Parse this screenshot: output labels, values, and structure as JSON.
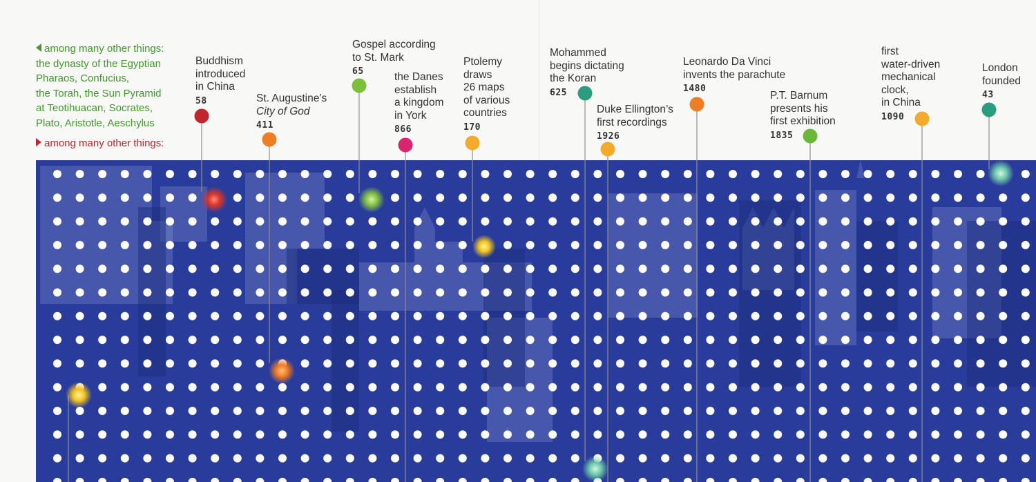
{
  "legend": {
    "green_text": [
      "among many other things:",
      "the dynasty of the Egyptian",
      "Pharaos, Confucius,",
      "the Torah, the Sun Pyramid",
      "at Teotihuacan, Socrates,",
      "Plato, Aristotle, Aeschylus"
    ],
    "red_text": "among many other things:"
  },
  "events": [
    {
      "id": "buddhism",
      "lines": [
        "Buddhism",
        "introduced",
        "in China"
      ],
      "year": "58",
      "color": "#c0262c"
    },
    {
      "id": "augustine",
      "lines": [
        "St. Augustine’s",
        "City of God"
      ],
      "year": "411",
      "color": "#ef7d22"
    },
    {
      "id": "gospel",
      "lines": [
        "Gospel according",
        "to St. Mark"
      ],
      "year": "65",
      "color": "#7cbf3a"
    },
    {
      "id": "danes",
      "lines": [
        "the Danes",
        "establish",
        "a kingdom",
        "in York"
      ],
      "year": "866",
      "color": "#d8256d"
    },
    {
      "id": "ptolemy",
      "lines": [
        "Ptolemy",
        "draws",
        "26 maps",
        "of various",
        "countries"
      ],
      "year": "170",
      "color": "#f4aa2a"
    },
    {
      "id": "mohammed",
      "lines": [
        "Mohammed",
        "begins dictating",
        "the Koran"
      ],
      "year": "625",
      "color": "#2a9d80"
    },
    {
      "id": "ellington",
      "lines": [
        "Duke Ellington’s",
        "first recordings"
      ],
      "year": "1926",
      "color": "#f4aa2a"
    },
    {
      "id": "davinci",
      "lines": [
        "Leonardo Da Vinci",
        "invents the parachute"
      ],
      "year": "1480",
      "color": "#ef7d22"
    },
    {
      "id": "barnum",
      "lines": [
        "P.T. Barnum",
        "presents his",
        "first exhibition"
      ],
      "year": "1835",
      "color": "#6ab83a"
    },
    {
      "id": "clock",
      "lines": [
        "first",
        "water-driven",
        "mechanical",
        "clock,",
        "in China"
      ],
      "year": "1090",
      "color": "#f4aa2a"
    },
    {
      "id": "london",
      "lines": [
        "London",
        "founded"
      ],
      "year": "43",
      "color": "#2a9d80"
    }
  ],
  "glow_colors": [
    "#f2c31c",
    "#d9352b",
    "#f07a24",
    "#82c142",
    "#f2c31c",
    "#5cbf9a",
    "#6dcba8"
  ],
  "board_color": "#2a3c9b"
}
